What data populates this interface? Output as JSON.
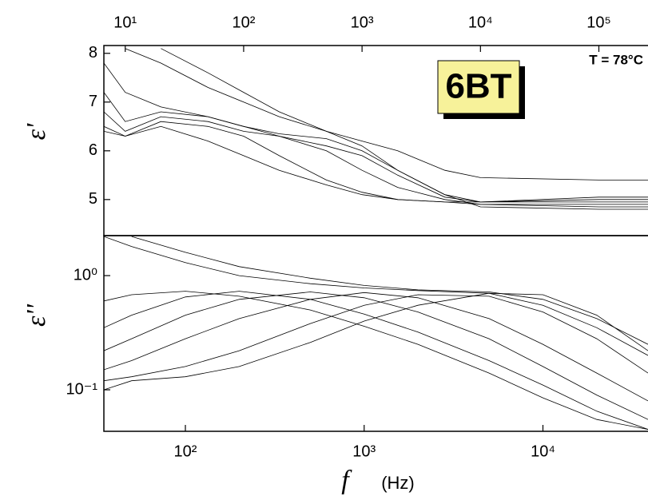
{
  "chart_data": [
    {
      "type": "line",
      "y_label": "ε'",
      "annotation": "6BT",
      "temperature_label": "T = 78°C",
      "xscale": "log",
      "yscale": "linear",
      "color": "#000000",
      "x": [
        6.6,
        10,
        20,
        50,
        100,
        200,
        500,
        1000,
        2000,
        5000,
        10000,
        100000,
        260000
      ],
      "xlim": [
        6.6,
        260000
      ],
      "xticks": [
        {
          "value": 10,
          "label": "10¹"
        },
        {
          "value": 100,
          "label": "10²"
        },
        {
          "value": 1000,
          "label": "10³"
        },
        {
          "value": 10000,
          "label": "10⁴"
        },
        {
          "value": 100000,
          "label": "10⁵"
        }
      ],
      "ylim": [
        4.26,
        8.16
      ],
      "yticks": [
        5,
        6,
        7,
        8
      ],
      "series": [
        {
          "values": [
            7.2,
            6.6,
            6.8,
            6.7,
            6.5,
            6.35,
            6.25,
            6.0,
            5.6,
            5.1,
            4.85,
            4.8,
            4.8
          ]
        },
        {
          "values": [
            6.8,
            6.4,
            6.7,
            6.6,
            6.4,
            6.3,
            6.0,
            5.6,
            5.25,
            5.0,
            4.9,
            4.85,
            4.85
          ]
        },
        {
          "values": [
            6.5,
            6.3,
            6.6,
            6.5,
            6.3,
            5.9,
            5.4,
            5.15,
            5.0,
            4.95,
            4.9,
            4.9,
            4.9
          ]
        },
        {
          "values": [
            6.4,
            6.3,
            6.5,
            6.2,
            5.9,
            5.6,
            5.3,
            5.1,
            5.0,
            4.95,
            4.95,
            4.95,
            4.95
          ]
        },
        {
          "values": [
            7.8,
            7.2,
            6.9,
            6.7,
            6.5,
            6.3,
            6.1,
            5.9,
            5.5,
            5.05,
            4.95,
            5.0,
            5.0
          ]
        },
        {
          "values": [
            null,
            8.1,
            7.8,
            7.3,
            7.0,
            6.7,
            6.4,
            6.2,
            6.0,
            5.6,
            5.45,
            5.4,
            5.4
          ]
        },
        {
          "values": [
            null,
            null,
            8.1,
            7.6,
            7.2,
            6.8,
            6.4,
            6.1,
            5.6,
            5.1,
            4.95,
            5.05,
            5.05
          ]
        }
      ]
    },
    {
      "type": "line",
      "y_label": "ε''",
      "x_label": "f",
      "x_unit": "(Hz)",
      "xscale": "log",
      "yscale": "log",
      "color": "#000000",
      "x": [
        35,
        50,
        100,
        200,
        500,
        1000,
        2000,
        5000,
        10000,
        20000,
        38700
      ],
      "xlim": [
        35,
        38700
      ],
      "xticks": [
        {
          "value": 100,
          "label": "10²"
        },
        {
          "value": 1000,
          "label": "10³"
        },
        {
          "value": 10000,
          "label": "10⁴"
        }
      ],
      "ylim": [
        0.0433,
        2.24
      ],
      "yticks": [
        {
          "value": 0.1,
          "label": "10⁻¹"
        },
        {
          "value": 1,
          "label": "10⁰"
        }
      ],
      "series": [
        {
          "values": [
            0.1,
            0.12,
            0.13,
            0.16,
            0.26,
            0.4,
            0.55,
            0.7,
            0.68,
            0.45,
            0.22
          ]
        },
        {
          "values": [
            0.12,
            0.13,
            0.16,
            0.22,
            0.38,
            0.55,
            0.68,
            0.66,
            0.48,
            0.28,
            0.14
          ]
        },
        {
          "values": [
            0.15,
            0.18,
            0.28,
            0.42,
            0.62,
            0.71,
            0.64,
            0.42,
            0.25,
            0.14,
            0.08
          ]
        },
        {
          "values": [
            0.22,
            0.28,
            0.45,
            0.62,
            0.72,
            0.64,
            0.48,
            0.28,
            0.16,
            0.09,
            0.055
          ]
        },
        {
          "values": [
            0.35,
            0.45,
            0.65,
            0.73,
            0.62,
            0.46,
            0.32,
            0.18,
            0.11,
            0.065,
            0.045
          ]
        },
        {
          "values": [
            0.6,
            0.68,
            0.73,
            0.66,
            0.5,
            0.36,
            0.25,
            0.14,
            0.085,
            0.055,
            0.045
          ]
        },
        {
          "values": [
            2.2,
            1.8,
            1.3,
            1.0,
            0.85,
            0.78,
            0.74,
            0.7,
            0.55,
            0.35,
            0.2
          ]
        },
        {
          "values": [
            null,
            2.2,
            1.6,
            1.2,
            0.95,
            0.82,
            0.75,
            0.72,
            0.62,
            0.42,
            0.25
          ]
        }
      ]
    }
  ]
}
